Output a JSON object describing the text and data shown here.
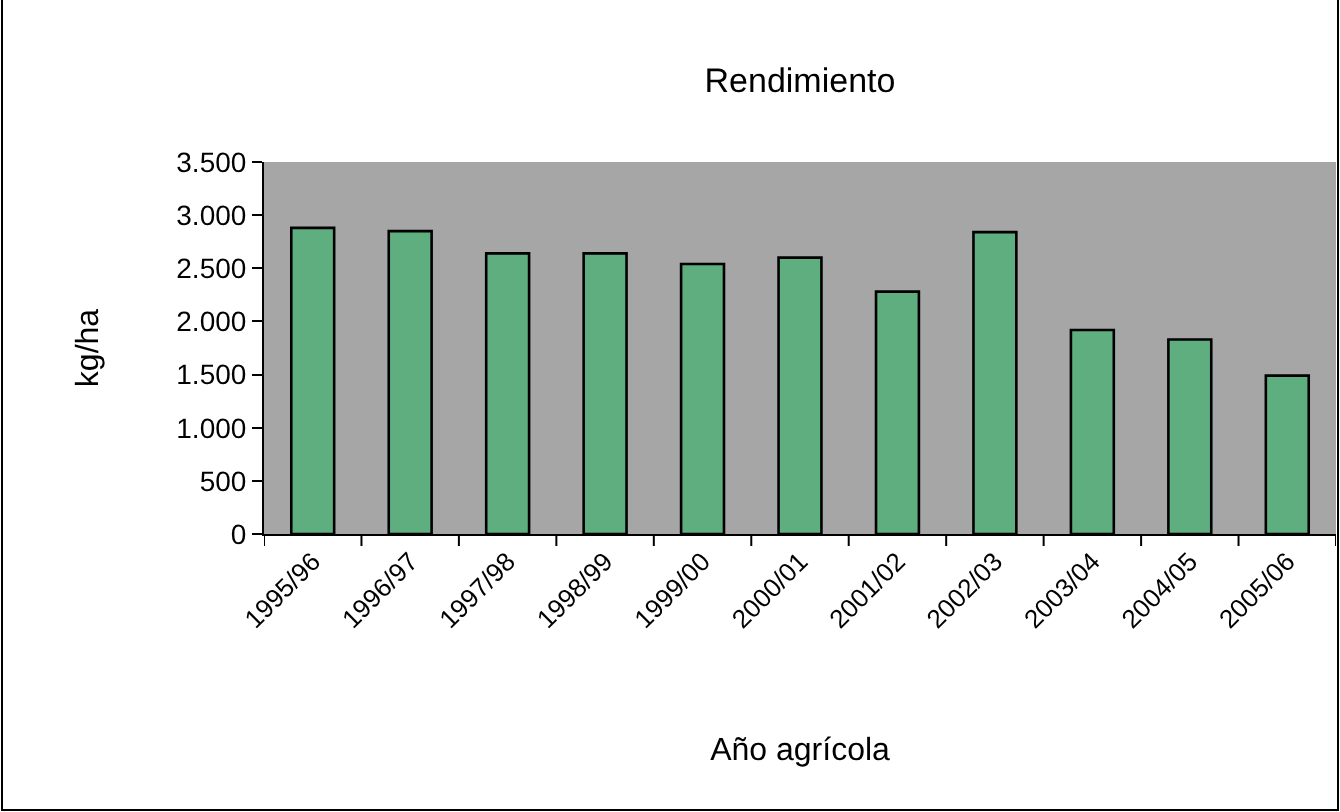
{
  "chart_data": {
    "type": "bar",
    "title": "Rendimiento",
    "xlabel": "Año agrícola",
    "ylabel": "kg/ha",
    "categories": [
      "1995/96",
      "1996/97",
      "1997/98",
      "1998/99",
      "1999/00",
      "2000/01",
      "2001/02",
      "2002/03",
      "2003/04",
      "2004/05",
      "2005/06"
    ],
    "values": [
      2880,
      2850,
      2640,
      2640,
      2540,
      2600,
      2280,
      2840,
      1920,
      1830,
      1490
    ],
    "color": "#5fae80",
    "ylim": [
      0,
      3500
    ],
    "yticks": [
      0,
      500,
      {
        "value": 1000,
        "label": "1.000"
      },
      {
        "value": 1500,
        "label": "1.500"
      },
      {
        "value": 2000,
        "label": "2.000"
      },
      {
        "value": 2500,
        "label": "2.500"
      },
      {
        "value": 3000,
        "label": "3.000"
      },
      {
        "value": 3500,
        "label": "3.500"
      }
    ]
  }
}
